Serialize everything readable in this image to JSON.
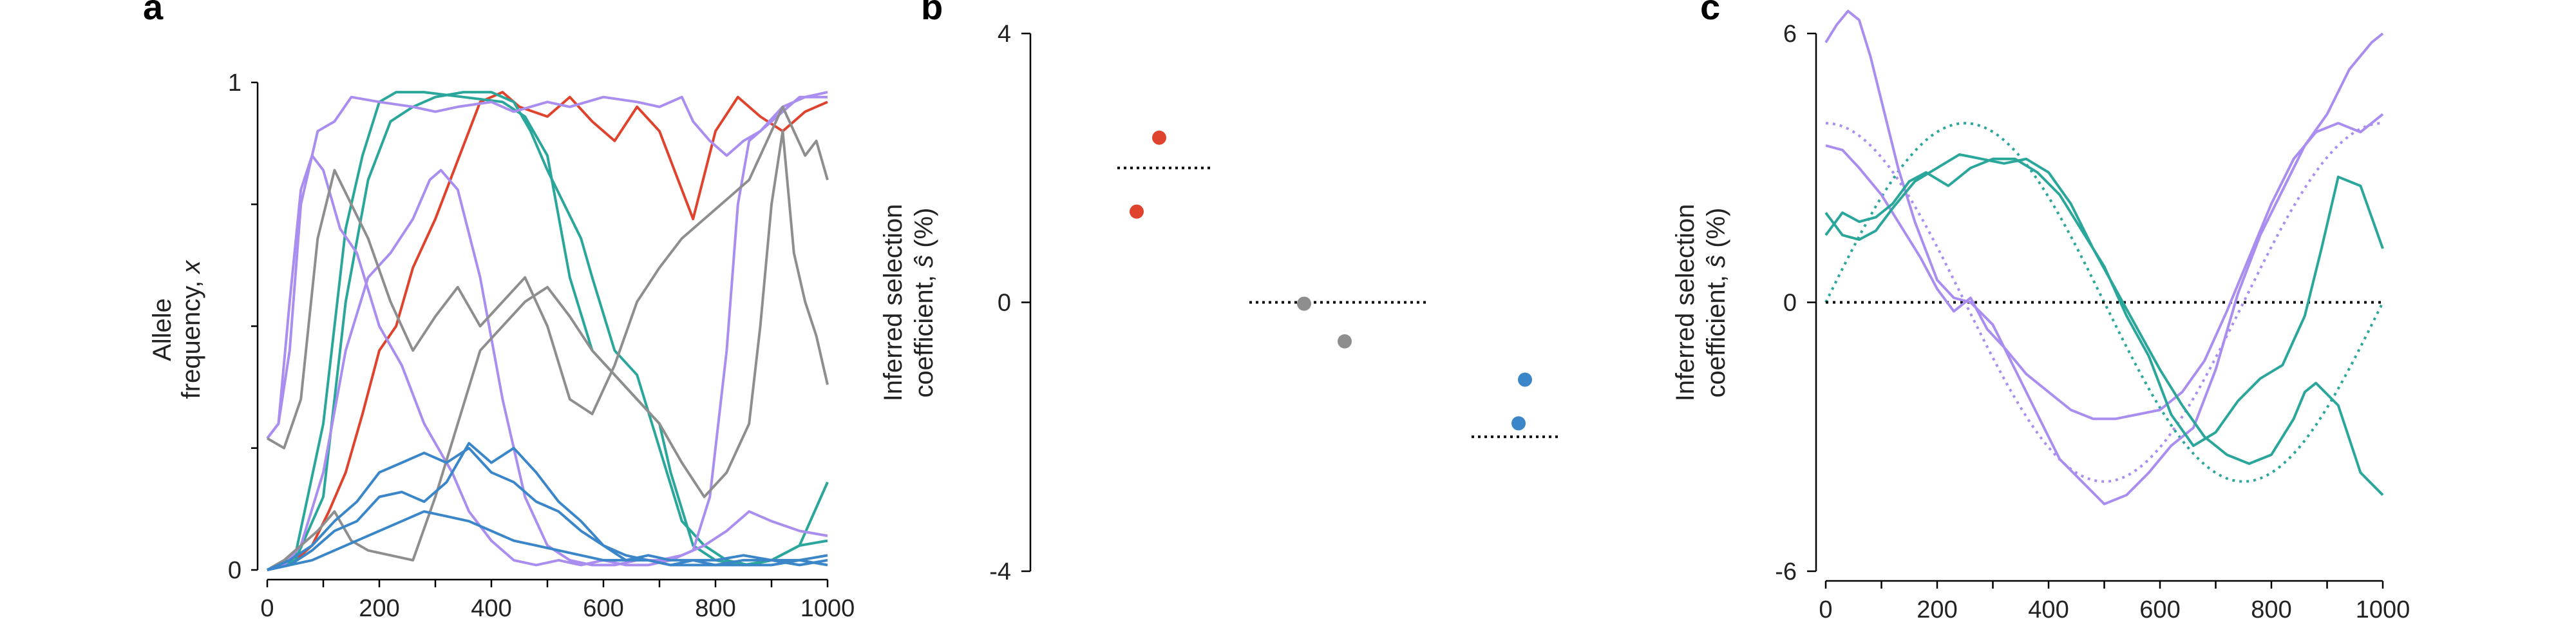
{
  "colors": {
    "red": "#e0432d",
    "gray": "#8e8e8e",
    "teal": "#2aa69a",
    "purple": "#a98ef0",
    "blue": "#3a86c8",
    "ref": "#000000"
  },
  "chart_data": [
    {
      "id": "a",
      "panel_label": "a",
      "type": "line",
      "ylabel_line1": "Allele",
      "ylabel_line2": "frequency, ",
      "ylabel_var": "x",
      "xlim": [
        0,
        1000
      ],
      "ylim": [
        0,
        1
      ],
      "xticks": [
        "0",
        "200",
        "400",
        "600",
        "800",
        "1000"
      ],
      "yticks": [
        "0",
        "1"
      ],
      "series": [
        {
          "color": "red",
          "x": [
            0,
            50,
            80,
            110,
            140,
            170,
            200,
            230,
            260,
            300,
            340,
            380,
            420,
            450,
            500,
            540,
            580,
            620,
            660,
            700,
            740,
            760,
            800,
            840,
            880,
            920,
            960,
            1000
          ],
          "y": [
            0,
            0.02,
            0.05,
            0.12,
            0.2,
            0.32,
            0.45,
            0.5,
            0.62,
            0.72,
            0.84,
            0.96,
            0.98,
            0.95,
            0.93,
            0.97,
            0.92,
            0.88,
            0.95,
            0.9,
            0.78,
            0.72,
            0.9,
            0.97,
            0.93,
            0.9,
            0.94,
            0.96
          ]
        },
        {
          "color": "teal",
          "x": [
            0,
            50,
            100,
            140,
            170,
            200,
            230,
            280,
            350,
            420,
            460,
            500,
            540,
            580,
            620,
            660,
            700,
            720,
            760,
            800,
            850,
            900,
            950,
            1000
          ],
          "y": [
            0,
            0.03,
            0.3,
            0.7,
            0.85,
            0.96,
            0.98,
            0.98,
            0.97,
            0.96,
            0.93,
            0.85,
            0.6,
            0.45,
            0.4,
            0.35,
            0.3,
            0.2,
            0.05,
            0.02,
            0.01,
            0.02,
            0.05,
            0.18
          ]
        },
        {
          "color": "teal",
          "x": [
            0,
            50,
            100,
            140,
            180,
            220,
            260,
            300,
            350,
            400,
            440,
            470,
            500,
            530,
            560,
            580,
            620,
            660,
            700,
            740,
            780,
            820,
            860,
            900,
            950,
            1000
          ],
          "y": [
            0,
            0.02,
            0.15,
            0.55,
            0.8,
            0.92,
            0.95,
            0.97,
            0.98,
            0.98,
            0.96,
            0.9,
            0.82,
            0.75,
            0.68,
            0.6,
            0.45,
            0.4,
            0.25,
            0.1,
            0.05,
            0.02,
            0.01,
            0.02,
            0.05,
            0.06
          ]
        },
        {
          "color": "purple",
          "x": [
            0,
            20,
            40,
            60,
            90,
            120,
            150,
            200,
            260,
            300,
            340,
            400,
            440,
            500,
            540,
            600,
            660,
            700,
            740,
            760,
            790,
            820,
            850,
            880,
            920,
            960,
            1000
          ],
          "y": [
            0.27,
            0.3,
            0.45,
            0.75,
            0.9,
            0.92,
            0.97,
            0.96,
            0.95,
            0.94,
            0.95,
            0.96,
            0.94,
            0.96,
            0.95,
            0.97,
            0.96,
            0.95,
            0.97,
            0.92,
            0.88,
            0.85,
            0.88,
            0.9,
            0.95,
            0.97,
            0.98
          ]
        },
        {
          "color": "purple",
          "x": [
            0,
            20,
            40,
            60,
            80,
            100,
            130,
            160,
            200,
            240,
            280,
            300,
            330,
            360,
            400,
            440,
            480,
            520,
            560,
            600,
            640,
            680,
            720,
            760,
            790,
            820,
            840,
            860,
            900,
            950,
            1000
          ],
          "y": [
            0.27,
            0.3,
            0.55,
            0.78,
            0.85,
            0.82,
            0.7,
            0.65,
            0.5,
            0.42,
            0.3,
            0.26,
            0.2,
            0.12,
            0.06,
            0.02,
            0.01,
            0.02,
            0.01,
            0.02,
            0.01,
            0.01,
            0.02,
            0.04,
            0.15,
            0.45,
            0.75,
            0.88,
            0.92,
            0.97,
            0.97
          ]
        },
        {
          "color": "purple",
          "x": [
            0,
            30,
            60,
            100,
            140,
            180,
            220,
            260,
            290,
            310,
            340,
            380,
            420,
            460,
            500,
            540,
            580,
            620,
            660,
            700,
            740,
            780,
            820,
            860,
            900,
            950,
            1000
          ],
          "y": [
            0,
            0.01,
            0.05,
            0.2,
            0.45,
            0.6,
            0.65,
            0.72,
            0.8,
            0.82,
            0.78,
            0.6,
            0.35,
            0.15,
            0.05,
            0.02,
            0.01,
            0.01,
            0.02,
            0.02,
            0.03,
            0.05,
            0.08,
            0.12,
            0.1,
            0.08,
            0.07
          ]
        },
        {
          "color": "gray",
          "x": [
            0,
            30,
            60,
            90,
            120,
            150,
            180,
            220,
            260,
            300,
            340,
            380,
            420,
            460,
            500,
            540,
            580,
            620,
            660,
            700,
            740,
            780,
            820,
            860,
            880,
            900,
            920,
            940,
            960,
            980,
            1000
          ],
          "y": [
            0.27,
            0.25,
            0.35,
            0.68,
            0.82,
            0.75,
            0.68,
            0.55,
            0.45,
            0.52,
            0.58,
            0.5,
            0.55,
            0.6,
            0.5,
            0.35,
            0.32,
            0.42,
            0.55,
            0.62,
            0.68,
            0.72,
            0.76,
            0.8,
            0.85,
            0.9,
            0.95,
            0.9,
            0.85,
            0.88,
            0.8
          ]
        },
        {
          "color": "gray",
          "x": [
            0,
            30,
            60,
            90,
            120,
            150,
            180,
            220,
            260,
            300,
            340,
            380,
            420,
            460,
            500,
            540,
            580,
            620,
            660,
            700,
            740,
            780,
            820,
            860,
            880,
            900,
            920,
            940,
            960,
            980,
            1000
          ],
          "y": [
            0,
            0.02,
            0.05,
            0.08,
            0.12,
            0.06,
            0.04,
            0.03,
            0.02,
            0.15,
            0.3,
            0.45,
            0.5,
            0.55,
            0.58,
            0.52,
            0.45,
            0.4,
            0.35,
            0.3,
            0.22,
            0.15,
            0.2,
            0.3,
            0.5,
            0.75,
            0.9,
            0.65,
            0.55,
            0.48,
            0.38
          ]
        },
        {
          "color": "blue",
          "x": [
            0,
            40,
            80,
            120,
            160,
            200,
            240,
            280,
            320,
            360,
            400,
            440,
            480,
            520,
            560,
            600,
            640,
            680,
            720,
            760,
            800,
            850,
            900,
            950,
            1000
          ],
          "y": [
            0,
            0.02,
            0.05,
            0.1,
            0.14,
            0.2,
            0.22,
            0.24,
            0.22,
            0.25,
            0.2,
            0.18,
            0.14,
            0.12,
            0.08,
            0.05,
            0.02,
            0.02,
            0.01,
            0.01,
            0.01,
            0.02,
            0.02,
            0.01,
            0.02
          ]
        },
        {
          "color": "blue",
          "x": [
            0,
            40,
            80,
            120,
            160,
            200,
            240,
            280,
            320,
            360,
            400,
            440,
            480,
            520,
            560,
            600,
            640,
            680,
            720,
            760,
            800,
            850,
            900,
            950,
            1000
          ],
          "y": [
            0,
            0.01,
            0.04,
            0.08,
            0.1,
            0.15,
            0.16,
            0.14,
            0.18,
            0.26,
            0.22,
            0.25,
            0.2,
            0.14,
            0.1,
            0.05,
            0.03,
            0.02,
            0.01,
            0.02,
            0.02,
            0.03,
            0.02,
            0.02,
            0.03
          ]
        },
        {
          "color": "blue",
          "x": [
            0,
            40,
            80,
            120,
            160,
            200,
            240,
            280,
            320,
            360,
            400,
            440,
            480,
            520,
            560,
            600,
            640,
            680,
            720,
            760,
            800,
            850,
            900,
            950,
            1000
          ],
          "y": [
            0,
            0.01,
            0.02,
            0.04,
            0.06,
            0.08,
            0.1,
            0.12,
            0.11,
            0.1,
            0.08,
            0.06,
            0.05,
            0.04,
            0.03,
            0.02,
            0.02,
            0.03,
            0.02,
            0.02,
            0.01,
            0.01,
            0.01,
            0.02,
            0.01
          ]
        }
      ]
    },
    {
      "id": "b",
      "panel_label": "b",
      "type": "scatter",
      "ylabel_line1": "Inferred selection",
      "ylabel_line2": "coefficient, ",
      "ylabel_var": "ŝ",
      "ylabel_suffix": " (%)",
      "ylim": [
        -4,
        4
      ],
      "yticks": [
        "4",
        "0",
        "-4"
      ],
      "ytick_values": [
        4,
        0,
        -4
      ],
      "groups": [
        {
          "color": "red",
          "true_value": 2.0,
          "points": [
            2.45,
            1.35
          ]
        },
        {
          "color": "gray",
          "true_value": 0.0,
          "points": [
            -0.02,
            -0.58
          ]
        },
        {
          "color": "blue",
          "true_value": -2.0,
          "points": [
            -1.15,
            -1.8
          ]
        }
      ]
    },
    {
      "id": "c",
      "panel_label": "c",
      "type": "line",
      "ylabel_line1": "Inferred selection",
      "ylabel_line2": "coefficient, ",
      "ylabel_var": "ŝ",
      "ylabel_suffix": " (%)",
      "xlim": [
        0,
        1000
      ],
      "ylim": [
        -6,
        6
      ],
      "xticks": [
        "0",
        "200",
        "400",
        "600",
        "800",
        "1000"
      ],
      "yticks": [
        "6",
        "0",
        "-6"
      ],
      "ytick_values": [
        6,
        0,
        -6
      ],
      "reference_lines": [
        {
          "color": "purple",
          "amplitude": 4,
          "phase_shift": 0
        },
        {
          "color": "teal",
          "amplitude": 4,
          "phase_shift": 250
        },
        {
          "color": "ref",
          "amplitude": 0,
          "phase_shift": 0
        }
      ],
      "period": 1000,
      "series": [
        {
          "color": "purple",
          "x": [
            0,
            20,
            40,
            60,
            80,
            100,
            130,
            160,
            200,
            230,
            260,
            300,
            340,
            380,
            420,
            460,
            500,
            540,
            580,
            620,
            660,
            700,
            740,
            780,
            820,
            860,
            900,
            940,
            980,
            1000
          ],
          "y": [
            5.8,
            6.2,
            6.5,
            6.3,
            5.5,
            4.5,
            3.0,
            1.8,
            0.5,
            0.1,
            0.0,
            -0.5,
            -1.5,
            -2.5,
            -3.5,
            -4.0,
            -4.5,
            -4.3,
            -3.8,
            -3.2,
            -2.8,
            -1.5,
            0.2,
            1.5,
            2.5,
            3.5,
            4.2,
            5.2,
            5.8,
            6.0
          ]
        },
        {
          "color": "purple",
          "x": [
            0,
            30,
            60,
            100,
            140,
            170,
            200,
            230,
            260,
            290,
            320,
            360,
            400,
            440,
            480,
            520,
            560,
            600,
            640,
            680,
            720,
            760,
            800,
            840,
            880,
            920,
            960,
            1000
          ],
          "y": [
            3.5,
            3.4,
            3.0,
            2.4,
            1.6,
            1.0,
            0.3,
            -0.2,
            0.1,
            -0.6,
            -1.0,
            -1.6,
            -2.0,
            -2.4,
            -2.6,
            -2.6,
            -2.5,
            -2.4,
            -2.0,
            -1.3,
            -0.2,
            1.0,
            2.2,
            3.2,
            3.8,
            4.0,
            3.8,
            4.2
          ]
        },
        {
          "color": "teal",
          "x": [
            0,
            30,
            60,
            90,
            120,
            150,
            180,
            220,
            260,
            300,
            340,
            380,
            420,
            460,
            500,
            540,
            580,
            620,
            660,
            700,
            740,
            780,
            820,
            860,
            890,
            920,
            960,
            1000
          ],
          "y": [
            1.5,
            2.0,
            1.8,
            1.9,
            2.2,
            2.7,
            2.9,
            2.6,
            3.0,
            3.2,
            3.2,
            2.9,
            2.4,
            1.6,
            0.8,
            -0.3,
            -1.2,
            -2.5,
            -3.2,
            -2.9,
            -2.2,
            -1.7,
            -1.4,
            -0.3,
            1.2,
            2.8,
            2.6,
            1.2
          ]
        },
        {
          "color": "teal",
          "x": [
            0,
            30,
            60,
            90,
            120,
            160,
            200,
            240,
            280,
            320,
            360,
            400,
            440,
            480,
            520,
            560,
            600,
            640,
            680,
            720,
            760,
            800,
            840,
            860,
            880,
            920,
            960,
            1000
          ],
          "y": [
            2.0,
            1.5,
            1.4,
            1.6,
            2.1,
            2.7,
            3.0,
            3.3,
            3.2,
            3.1,
            3.2,
            2.9,
            2.2,
            1.2,
            0.3,
            -0.6,
            -1.5,
            -2.3,
            -3.0,
            -3.4,
            -3.6,
            -3.4,
            -2.6,
            -2.0,
            -1.8,
            -2.3,
            -3.8,
            -4.3
          ]
        }
      ]
    }
  ]
}
